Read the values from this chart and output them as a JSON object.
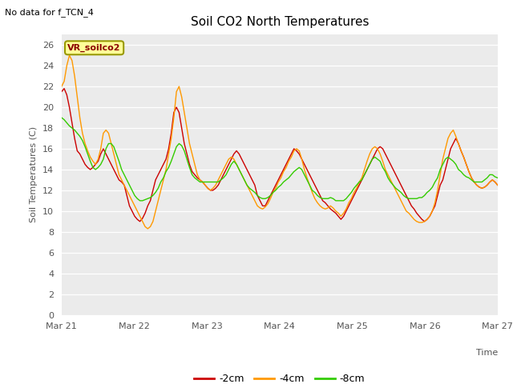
{
  "title": "Soil CO2 North Temperatures",
  "subtitle": "No data for f_TCN_4",
  "xlabel": "Time",
  "ylabel": "Soil Temperatures (C)",
  "ylim": [
    0,
    27
  ],
  "yticks": [
    0,
    2,
    4,
    6,
    8,
    10,
    12,
    14,
    16,
    18,
    20,
    22,
    24,
    26
  ],
  "bg_color": "#ffffff",
  "plot_bg_color": "#ebebeb",
  "line_2cm_color": "#cc0000",
  "line_4cm_color": "#ff9900",
  "line_8cm_color": "#33cc00",
  "legend_box_color": "#ffff99",
  "legend_box_edge": "#999900",
  "legend_text": "VR_soilco2",
  "x_tick_labels": [
    "Mar 21",
    "Mar 22",
    "Mar 23",
    "Mar 24",
    "Mar 25",
    "Mar 26",
    "Mar 27"
  ],
  "x_tick_positions": [
    0,
    24,
    48,
    72,
    96,
    120,
    144
  ],
  "series_2cm": [
    21.5,
    21.8,
    21.2,
    20.0,
    18.5,
    17.0,
    15.8,
    15.5,
    15.0,
    14.5,
    14.2,
    14.0,
    14.2,
    14.5,
    14.8,
    15.5,
    16.0,
    15.5,
    15.0,
    14.5,
    14.0,
    13.5,
    13.0,
    12.8,
    12.5,
    11.5,
    10.5,
    10.0,
    9.5,
    9.2,
    9.0,
    9.3,
    9.8,
    10.5,
    11.0,
    12.0,
    13.0,
    13.5,
    14.0,
    14.5,
    15.0,
    16.0,
    17.5,
    19.5,
    20.0,
    19.5,
    18.0,
    16.5,
    15.5,
    14.5,
    13.8,
    13.5,
    13.2,
    13.0,
    12.8,
    12.5,
    12.2,
    12.0,
    12.0,
    12.2,
    12.5,
    13.0,
    13.5,
    14.0,
    14.5,
    15.0,
    15.5,
    15.8,
    15.5,
    15.0,
    14.5,
    14.0,
    13.5,
    13.0,
    12.5,
    11.5,
    11.0,
    10.5,
    10.5,
    11.0,
    11.5,
    12.0,
    12.5,
    13.0,
    13.5,
    14.0,
    14.5,
    15.0,
    15.5,
    16.0,
    15.8,
    15.5,
    15.0,
    14.5,
    14.0,
    13.5,
    13.0,
    12.5,
    12.0,
    11.5,
    11.0,
    10.8,
    10.5,
    10.2,
    10.0,
    9.8,
    9.5,
    9.2,
    9.5,
    10.0,
    10.5,
    11.0,
    11.5,
    12.0,
    12.5,
    13.0,
    13.5,
    14.0,
    14.5,
    15.0,
    15.5,
    16.0,
    16.2,
    16.0,
    15.5,
    15.0,
    14.5,
    14.0,
    13.5,
    13.0,
    12.5,
    12.0,
    11.5,
    11.0,
    10.5,
    10.2,
    9.8,
    9.5,
    9.2,
    9.0,
    9.2,
    9.5,
    10.0,
    10.5,
    11.5,
    12.5,
    13.0,
    14.0,
    15.0,
    16.0,
    16.5,
    17.0,
    16.5,
    15.8,
    15.2,
    14.5,
    13.8,
    13.2,
    12.8,
    12.5,
    12.3,
    12.2,
    12.3,
    12.5,
    12.8,
    13.0,
    12.8,
    12.5
  ],
  "series_4cm": [
    22.0,
    22.5,
    24.0,
    25.0,
    24.5,
    23.0,
    21.0,
    19.0,
    17.5,
    16.5,
    15.8,
    15.2,
    14.8,
    14.5,
    15.0,
    16.0,
    17.5,
    17.8,
    17.5,
    16.5,
    15.5,
    14.5,
    13.5,
    13.0,
    12.5,
    12.0,
    11.5,
    11.0,
    10.5,
    10.0,
    9.5,
    9.0,
    8.5,
    8.3,
    8.5,
    9.0,
    10.0,
    11.0,
    12.0,
    13.0,
    14.0,
    15.5,
    17.0,
    19.0,
    21.5,
    22.0,
    21.0,
    19.5,
    18.0,
    16.5,
    15.5,
    14.5,
    13.5,
    13.0,
    12.8,
    12.5,
    12.2,
    12.0,
    12.2,
    12.5,
    13.0,
    13.5,
    14.0,
    14.5,
    15.0,
    15.2,
    15.0,
    14.5,
    14.0,
    13.5,
    13.0,
    12.5,
    12.0,
    11.5,
    11.0,
    10.5,
    10.3,
    10.2,
    10.4,
    10.7,
    11.2,
    11.8,
    12.2,
    12.8,
    13.2,
    13.8,
    14.2,
    14.8,
    15.2,
    15.8,
    16.0,
    15.8,
    15.0,
    14.0,
    13.2,
    12.5,
    11.8,
    11.2,
    10.8,
    10.5,
    10.3,
    10.2,
    10.3,
    10.5,
    10.3,
    10.0,
    9.8,
    9.5,
    9.8,
    10.2,
    10.8,
    11.2,
    11.8,
    12.2,
    12.8,
    13.2,
    14.0,
    14.8,
    15.5,
    16.0,
    16.2,
    16.0,
    15.5,
    14.8,
    14.0,
    13.5,
    13.0,
    12.5,
    12.0,
    11.5,
    11.0,
    10.5,
    10.0,
    9.8,
    9.5,
    9.2,
    9.0,
    8.9,
    8.9,
    9.0,
    9.2,
    9.5,
    10.0,
    10.8,
    12.0,
    13.5,
    15.0,
    16.0,
    17.0,
    17.5,
    17.8,
    17.2,
    16.5,
    15.8,
    15.2,
    14.5,
    13.8,
    13.2,
    12.8,
    12.5,
    12.3,
    12.2,
    12.3,
    12.5,
    12.8,
    13.0,
    12.8,
    12.5
  ],
  "series_8cm": [
    19.0,
    18.8,
    18.5,
    18.2,
    18.0,
    17.8,
    17.5,
    17.2,
    16.8,
    16.2,
    15.5,
    14.8,
    14.2,
    14.0,
    14.2,
    14.5,
    15.0,
    16.0,
    16.5,
    16.5,
    16.2,
    15.5,
    14.8,
    14.0,
    13.5,
    13.0,
    12.5,
    12.0,
    11.5,
    11.2,
    11.0,
    11.0,
    11.1,
    11.2,
    11.3,
    11.5,
    11.8,
    12.2,
    12.8,
    13.2,
    13.8,
    14.2,
    14.8,
    15.5,
    16.2,
    16.5,
    16.3,
    15.8,
    15.0,
    14.2,
    13.5,
    13.2,
    13.0,
    12.8,
    12.8,
    12.8,
    12.8,
    12.8,
    12.8,
    12.8,
    12.8,
    13.0,
    13.2,
    13.5,
    14.0,
    14.5,
    14.8,
    14.5,
    14.0,
    13.5,
    13.0,
    12.5,
    12.2,
    12.0,
    11.8,
    11.5,
    11.3,
    11.2,
    11.2,
    11.3,
    11.5,
    11.8,
    12.0,
    12.3,
    12.5,
    12.8,
    13.0,
    13.2,
    13.5,
    13.8,
    14.0,
    14.2,
    14.0,
    13.5,
    13.0,
    12.5,
    12.0,
    11.8,
    11.5,
    11.3,
    11.2,
    11.2,
    11.2,
    11.3,
    11.2,
    11.0,
    11.0,
    11.0,
    11.0,
    11.2,
    11.5,
    11.8,
    12.2,
    12.5,
    12.8,
    13.0,
    13.5,
    14.0,
    14.5,
    15.0,
    15.2,
    15.0,
    14.8,
    14.2,
    13.8,
    13.2,
    12.8,
    12.5,
    12.2,
    12.0,
    11.8,
    11.5,
    11.3,
    11.2,
    11.2,
    11.2,
    11.2,
    11.3,
    11.3,
    11.5,
    11.8,
    12.0,
    12.3,
    12.8,
    13.2,
    14.0,
    14.5,
    15.0,
    15.2,
    15.0,
    14.8,
    14.5,
    14.0,
    13.8,
    13.5,
    13.3,
    13.2,
    13.0,
    12.8,
    12.8,
    12.8,
    12.8,
    13.0,
    13.2,
    13.5,
    13.5,
    13.3,
    13.2
  ]
}
